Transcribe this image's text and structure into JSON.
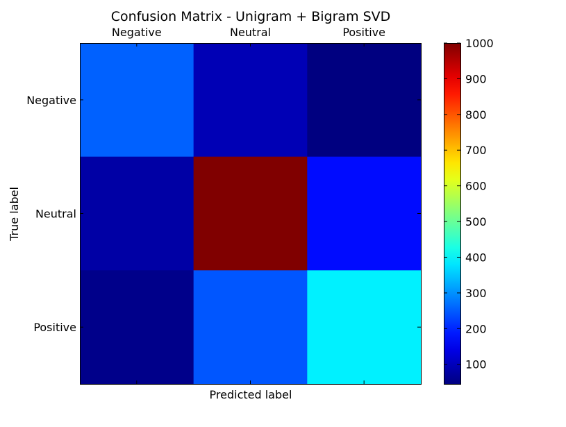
{
  "chart_data": {
    "type": "heatmap",
    "title": "Confusion Matrix - Unigram + Bigram SVD",
    "xlabel": "Predicted label",
    "ylabel": "True label",
    "x_categories": [
      "Negative",
      "Neutral",
      "Positive"
    ],
    "y_categories": [
      "Negative",
      "Neutral",
      "Positive"
    ],
    "values": [
      [
        255,
        95,
        45
      ],
      [
        80,
        1000,
        175
      ],
      [
        55,
        245,
        390
      ]
    ],
    "colormap": "jet",
    "colorbar": {
      "vmin": 45,
      "vmax": 1000,
      "ticks": [
        100,
        200,
        300,
        400,
        500,
        600,
        700,
        800,
        900,
        1000
      ],
      "tick_labels": [
        "100",
        "200",
        "300",
        "400",
        "500",
        "600",
        "700",
        "800",
        "900",
        "1000"
      ]
    },
    "x_tick_position": "top",
    "grid": false,
    "legend": "colorbar-right"
  }
}
